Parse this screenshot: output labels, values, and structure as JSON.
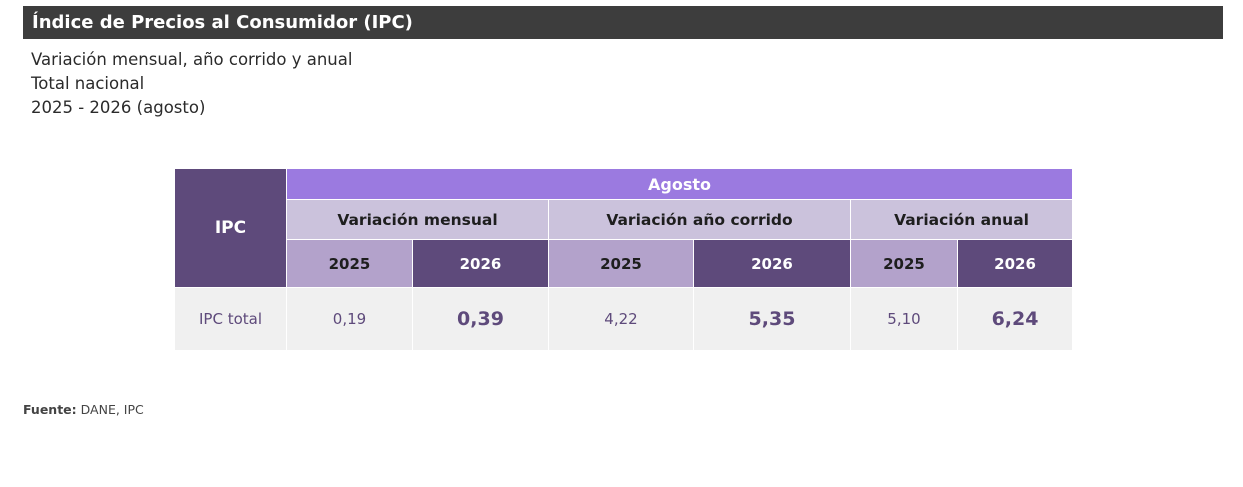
{
  "header": {
    "title": "Índice de Precios al Consumidor (IPC)"
  },
  "subtitles": {
    "line1": "Variación mensual, año corrido y anual",
    "line2": "Total nacional",
    "line3": "2025 - 2026 (agosto)"
  },
  "table": {
    "row_header": "IPC",
    "period": "Agosto",
    "groups": [
      "Variación mensual",
      "Variación año corrido",
      "Variación anual"
    ],
    "years": [
      "2025",
      "2026",
      "2025",
      "2026",
      "2025",
      "2026"
    ],
    "rows": [
      {
        "label": "IPC total",
        "values": [
          "0,19",
          "0,39",
          "4,22",
          "5,35",
          "5,10",
          "6,24"
        ]
      }
    ]
  },
  "source": {
    "label": "Fuente:",
    "text": "DANE, IPC"
  },
  "colors": {
    "title_bg": "#3d3d3d",
    "dark_purple": "#5e4a7b",
    "period_purple": "#9b7ae0",
    "group_lavender": "#cbc2dc",
    "year_light": "#b3a2cb",
    "row_bg": "#f0f0f0"
  }
}
